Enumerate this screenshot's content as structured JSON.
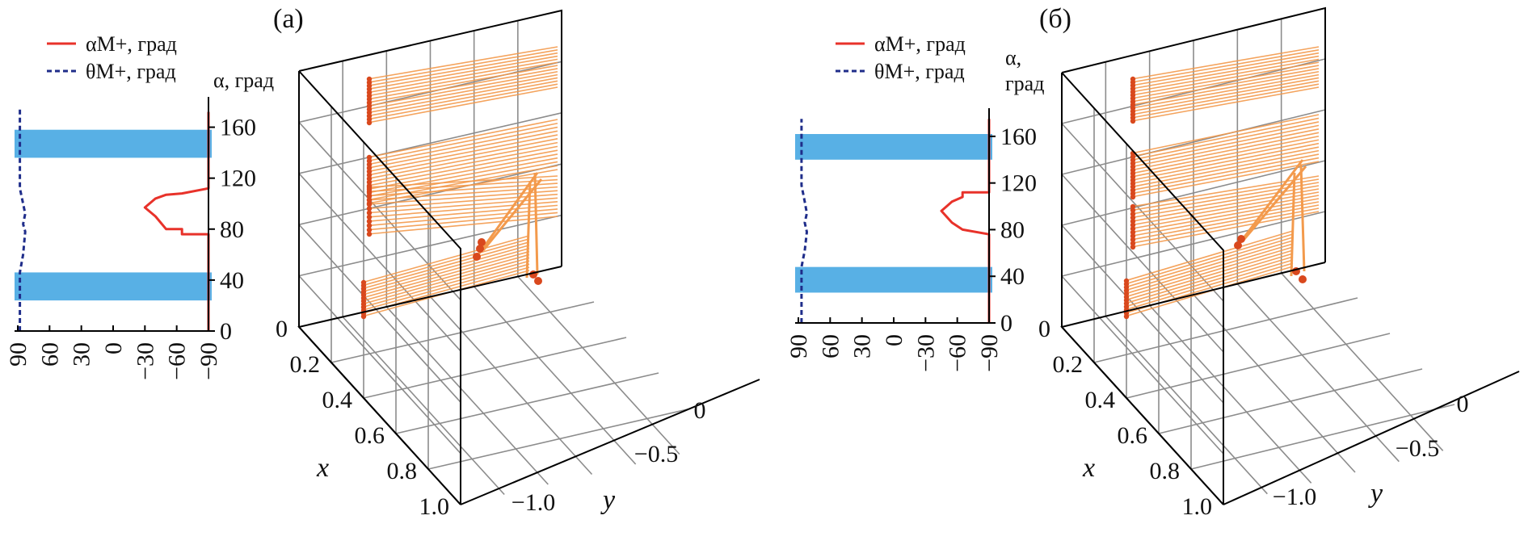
{
  "colors": {
    "alpha_line": "#e8322a",
    "theta_line": "#1f2d8a",
    "band": "#58b0e5",
    "trajectory": "#f39a4c",
    "trajectory_dark": "#d9481d",
    "grid": "#8c8c8c",
    "box": "#000000"
  },
  "chart_data": [
    {
      "panel_label": "(а)",
      "type": "line",
      "legend": {
        "alpha": "αM+, град",
        "theta": "θM+, град"
      },
      "ylabel": "α, град",
      "yticks": [
        "0",
        "40",
        "80",
        "120",
        "160"
      ],
      "xticks": [
        "90",
        "60",
        "30",
        "0",
        "−30",
        "−60",
        "−90"
      ],
      "xlim": [
        90,
        -90
      ],
      "ylim": [
        0,
        180
      ],
      "bands": [
        [
          24,
          46
        ],
        [
          136,
          158
        ]
      ],
      "series": [
        {
          "key": "alpha",
          "style": "solid",
          "x": [
            -90,
            -90,
            -90,
            -90,
            -90,
            -65,
            -65,
            -50,
            -40,
            -30,
            -40,
            -50,
            -65,
            -90,
            -90,
            -90,
            -90,
            -90
          ],
          "y": [
            0,
            20,
            46,
            60,
            76,
            76,
            80,
            80,
            90,
            97,
            104,
            107,
            108,
            112,
            120,
            136,
            160,
            172
          ]
        },
        {
          "key": "theta",
          "style": "dashed",
          "x": [
            88,
            88,
            88,
            85,
            83,
            85,
            83,
            85,
            88,
            88,
            88,
            88
          ],
          "y": [
            0,
            24,
            46,
            60,
            78,
            84,
            92,
            100,
            112,
            136,
            158,
            176
          ]
        }
      ]
    },
    {
      "panel_label": "(б)",
      "type": "line",
      "legend": {
        "alpha": "αM+, град",
        "theta": "θM+, град"
      },
      "ylabel_line1": "α,",
      "ylabel_line2": "град",
      "yticks": [
        "0",
        "40",
        "80",
        "120",
        "160"
      ],
      "xticks": [
        "90",
        "60",
        "30",
        "0",
        "−30",
        "−60",
        "−90"
      ],
      "xlim": [
        90,
        -90
      ],
      "ylim": [
        0,
        180
      ],
      "bands": [
        [
          26,
          48
        ],
        [
          140,
          162
        ]
      ],
      "series": [
        {
          "key": "alpha",
          "style": "solid",
          "x": [
            -90,
            -90,
            -90,
            -90,
            -90,
            -65,
            -55,
            -45,
            -55,
            -65,
            -65,
            -90,
            -90,
            -90,
            -90,
            -90
          ],
          "y": [
            0,
            26,
            48,
            66,
            76,
            80,
            86,
            96,
            104,
            108,
            112,
            112,
            126,
            140,
            162,
            175
          ]
        },
        {
          "key": "theta",
          "style": "dashed",
          "x": [
            87,
            87,
            87,
            84,
            82,
            84,
            82,
            84,
            87,
            87,
            87,
            87
          ],
          "y": [
            0,
            26,
            48,
            62,
            78,
            86,
            94,
            104,
            118,
            140,
            162,
            175
          ]
        }
      ]
    },
    {
      "type": "scatter",
      "xlabel": "x",
      "ylabel": "y",
      "xticks": [
        "0",
        "0.2",
        "0.4",
        "0.6",
        "0.8",
        "1.0"
      ],
      "yticks": [
        "0",
        "−0.5",
        "−1.0"
      ],
      "zticks": [
        "0",
        "40",
        "80",
        "120",
        "160"
      ],
      "xlim": [
        0,
        1.0
      ],
      "ylim": [
        -1.0,
        0
      ],
      "grid": true
    },
    {
      "type": "scatter",
      "xlabel": "x",
      "ylabel": "y",
      "xticks": [
        "0",
        "0.2",
        "0.4",
        "0.6",
        "0.8",
        "1.0"
      ],
      "yticks": [
        "0",
        "−0.5",
        "−1.0"
      ],
      "zticks": [
        "0",
        "40",
        "80",
        "120",
        "160"
      ],
      "xlim": [
        0,
        1.0
      ],
      "ylim": [
        -1.0,
        0
      ],
      "grid": true
    }
  ]
}
